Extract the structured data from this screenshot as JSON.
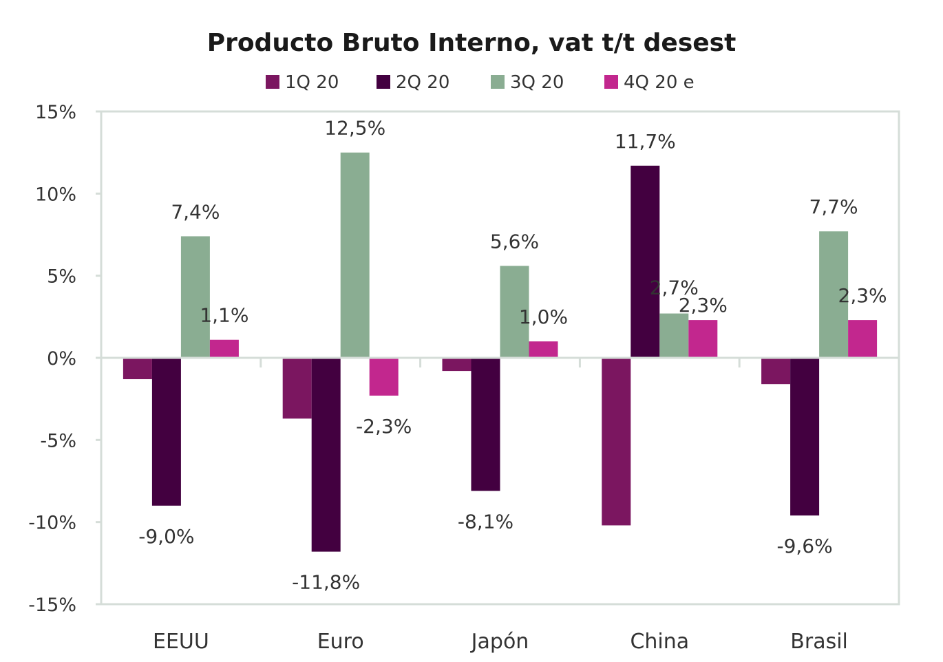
{
  "chart_data": {
    "type": "bar",
    "title": "Producto Bruto Interno, vat t/t desest",
    "categories": [
      "EEUU",
      "Euro",
      "Japón",
      "China",
      "Brasil"
    ],
    "series": [
      {
        "name": "1Q 20",
        "color": "#7b1660",
        "values": [
          -1.3,
          -3.7,
          -0.8,
          -10.2,
          -1.6
        ],
        "labels": [
          "",
          "",
          "",
          "",
          ""
        ]
      },
      {
        "name": "2Q 20",
        "color": "#430040",
        "values": [
          -9.0,
          -11.8,
          -8.1,
          11.7,
          -9.6
        ],
        "labels": [
          "-9,0%",
          "-11,8%",
          "-8,1%",
          "11,7%",
          "-9,6%"
        ]
      },
      {
        "name": "3Q 20",
        "color": "#8aad92",
        "values": [
          7.4,
          12.5,
          5.6,
          2.7,
          7.7
        ],
        "labels": [
          "7,4%",
          "12,5%",
          "5,6%",
          "2,7%",
          "7,7%"
        ]
      },
      {
        "name": "4Q 20 e",
        "color": "#c2278e",
        "values": [
          1.1,
          -2.3,
          1.0,
          2.3,
          2.3
        ],
        "labels": [
          "1,1%",
          "-2,3%",
          "1,0%",
          "2,3%",
          "2,3%"
        ]
      }
    ],
    "yticks": [
      15,
      10,
      5,
      0,
      -5,
      -10,
      -15
    ],
    "ytick_labels": [
      "15%",
      "10%",
      "5%",
      "0%",
      "-5%",
      "-10%",
      "-15%"
    ],
    "ylim": [
      -15,
      15
    ],
    "grid": false,
    "legend_position": "top",
    "axis_color": "#d5ddd8"
  }
}
